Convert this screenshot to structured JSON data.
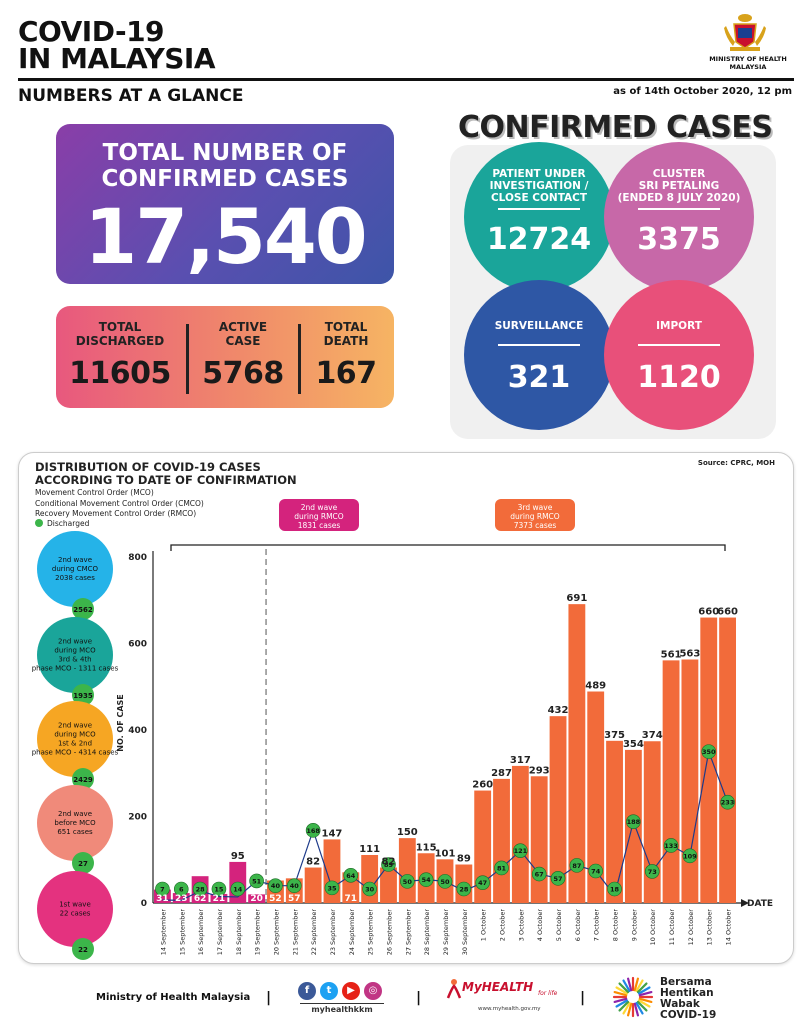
{
  "header": {
    "title_line1": "COVID-19",
    "title_line2": "IN MALAYSIA",
    "subtitle": "NUMBERS AT A GLANCE",
    "as_of": "as of 14th October 2020, 12 pm",
    "ministry_line1": "MINISTRY OF HEALTH",
    "ministry_line2": "MALAYSIA"
  },
  "total": {
    "label_line1": "TOTAL NUMBER OF",
    "label_line2": "CONFIRMED CASES",
    "value": "17,540"
  },
  "summary": {
    "discharged_label1": "TOTAL",
    "discharged_label2": "DISCHARGED",
    "discharged_value": "11605",
    "active_label1": "ACTIVE",
    "active_label2": "CASE",
    "active_value": "5768",
    "death_label1": "TOTAL",
    "death_label2": "DEATH",
    "death_value": "167"
  },
  "confirmed": {
    "title": "CONFIRMED CASES",
    "pui_label1": "PATIENT UNDER",
    "pui_label2": "INVESTIGATION /",
    "pui_label3": "CLOSE CONTACT",
    "pui_value": "12724",
    "cluster_label1": "CLUSTER",
    "cluster_label2": "SRI PETALING",
    "cluster_label3": "(ENDED 8 JULY 2020)",
    "cluster_value": "3375",
    "surveillance_label": "SURVEILLANCE",
    "surveillance_value": "321",
    "import_label": "IMPORT",
    "import_value": "1120"
  },
  "colors": {
    "teal": "#1aa59a",
    "pink": "#c768a8",
    "blue": "#2e57a5",
    "rose": "#e8507a",
    "orange_bar": "#f26b3a",
    "magenta_bar": "#d4237d",
    "discharged_green": "#3cb54a"
  },
  "chart_data": {
    "type": "bar",
    "title_line1": "DISTRIBUTION OF COVID-19 CASES",
    "title_line2": "ACCORDING TO DATE OF CONFIRMATION",
    "source": "Source: CPRC, MOH",
    "legend": {
      "mco": "Movement Control Order (MCO)",
      "cmco": "Conditional Movement Control Order (CMCO)",
      "rmco": "Recovery Movement Control Order (RMCO)",
      "discharged": "Discharged"
    },
    "ylabel": "NO. OF CASE",
    "xlabel": "DATE",
    "ylim": [
      0,
      800
    ],
    "yticks": [
      0,
      200,
      400,
      600,
      800
    ],
    "wave_rmco_line1": "2nd wave",
    "wave_rmco_line2": "during RMCO",
    "wave_rmco_line3": "1831 cases",
    "wave3_line1": "3rd wave",
    "wave3_line2": "during RMCO",
    "wave3_line3": "7373 cases",
    "categories": [
      "14 September",
      "15 September",
      "16 September",
      "17 September",
      "18 September",
      "19 September",
      "20 September",
      "21 September",
      "22 September",
      "23 September",
      "24 September",
      "25 September",
      "26 September",
      "27 September",
      "28 September",
      "29 September",
      "30 September",
      "1 October",
      "2 October",
      "3 October",
      "4 October",
      "5 October",
      "6 October",
      "7 October",
      "8 October",
      "9 October",
      "10 October",
      "11 October",
      "12 October",
      "13 October",
      "14 October"
    ],
    "values": [
      31,
      23,
      62,
      21,
      95,
      20,
      52,
      57,
      82,
      147,
      71,
      111,
      82,
      150,
      115,
      101,
      89,
      260,
      287,
      317,
      293,
      432,
      691,
      489,
      375,
      354,
      374,
      561,
      563,
      660,
      660
    ],
    "value_labels": [
      "31",
      "23",
      "62",
      "21",
      "95",
      "20",
      "52",
      "57",
      "82",
      "147",
      "71",
      "111",
      "82",
      "150",
      "115",
      "101",
      "89",
      "260",
      "287",
      "317",
      "293",
      "432",
      "691",
      "489",
      "375",
      "354",
      "374",
      "561",
      "563",
      "660",
      "660"
    ],
    "discharged": [
      7,
      6,
      28,
      15,
      14,
      51,
      40,
      40,
      168,
      35,
      64,
      30,
      89,
      50,
      54,
      50,
      28,
      47,
      81,
      121,
      67,
      57,
      87,
      74,
      18,
      188,
      73,
      133,
      109,
      350,
      233
    ],
    "discharged_labels": [
      "7",
      "6",
      "28",
      "15",
      "14",
      "51",
      "40",
      "40",
      "168",
      "35",
      "64",
      "30",
      "89",
      "50",
      "54",
      "50",
      "28",
      "47",
      "81",
      "121",
      "67",
      "57",
      "87",
      "74",
      "18",
      "188",
      "73",
      "133",
      "109",
      "350",
      "233"
    ],
    "side_waves": [
      {
        "line1": "2nd wave",
        "line2": "during CMCO",
        "line3": "2038 cases",
        "line4": "",
        "discharged": "2562",
        "color": "#25b3e8"
      },
      {
        "line1": "2nd wave",
        "line2": "during MCO",
        "line3": "3rd & 4th",
        "line4": "phase MCO - 1311 cases",
        "discharged": "1935",
        "color": "#1aa59a"
      },
      {
        "line1": "2nd wave",
        "line2": "during MCO",
        "line3": "1st & 2nd",
        "line4": "phase MCO - 4314 cases",
        "discharged": "2429",
        "color": "#f6a623"
      },
      {
        "line1": "2nd wave",
        "line2": "before MCO",
        "line3": "651 cases",
        "line4": "",
        "discharged": "27",
        "color": "#f08a7a"
      },
      {
        "line1": "1st wave",
        "line2": "22 cases",
        "line3": "",
        "line4": "",
        "discharged": "22",
        "color": "#e4327f"
      }
    ]
  },
  "footer": {
    "ministry": "Ministry of Health Malaysia",
    "social_handle": "myhealthkkm",
    "myhealth": "MyHEALTH",
    "myhealth_tag": "for life",
    "myhealth_url": "www.myhealth.gov.my",
    "bersama_line1": "Bersama",
    "bersama_line2": "Hentikan",
    "bersama_line3": "Wabak",
    "bersama_line4": "COVID-19"
  }
}
